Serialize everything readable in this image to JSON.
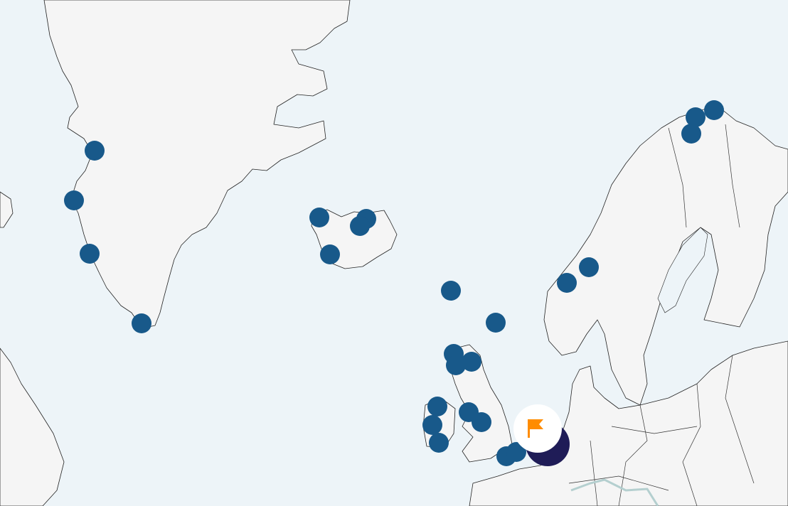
{
  "map": {
    "colors": {
      "water": "#edf4f8",
      "land": "#f5f5f5",
      "coastline": "#222222",
      "marker": "#18598a",
      "selected_marker": "#1f1c57",
      "flag": "#ff8c00",
      "river": "#b4cfcf"
    },
    "marker_icon": "circle-marker",
    "selected_marker_icon": "flag-icon"
  }
}
